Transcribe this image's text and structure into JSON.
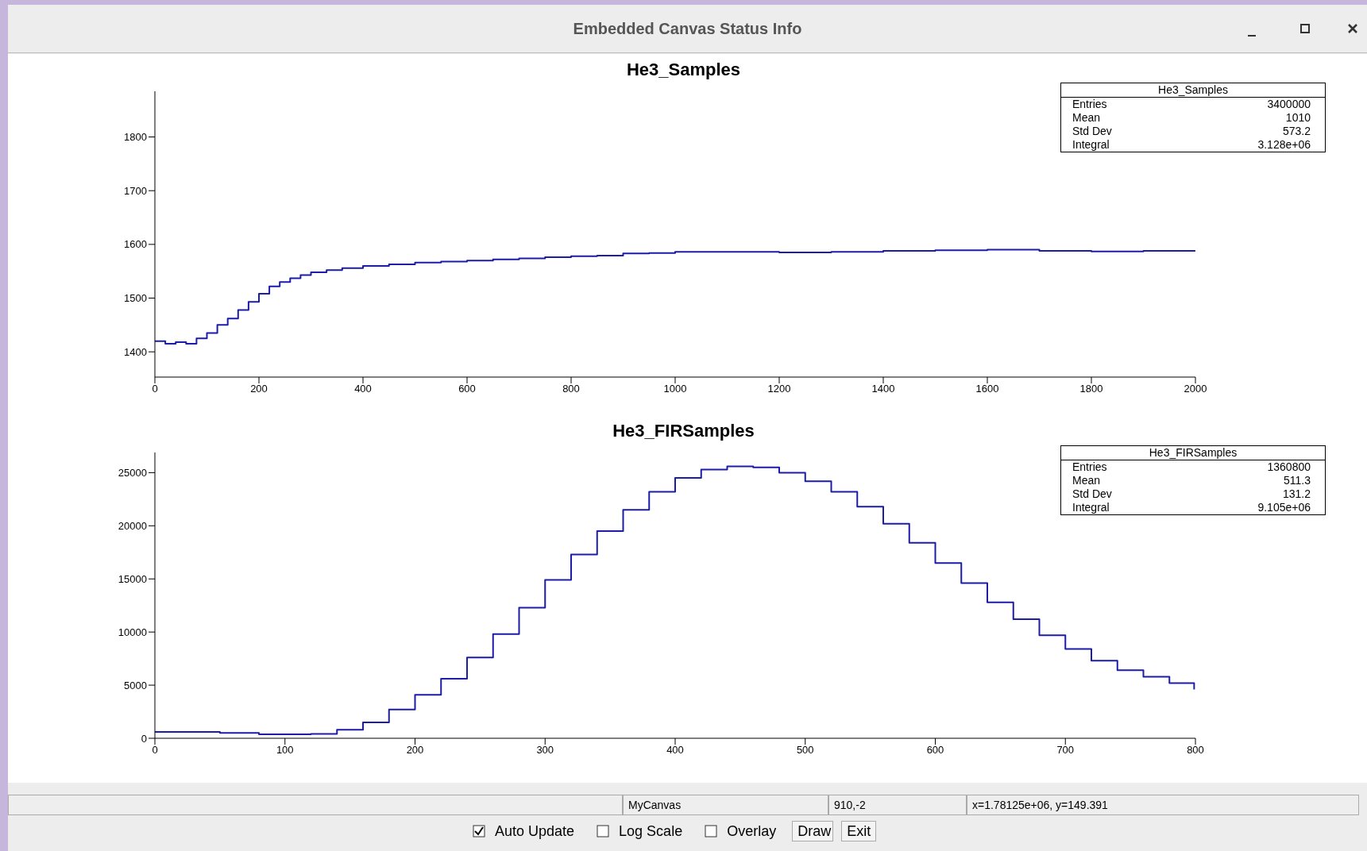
{
  "chart_data": [
    {
      "type": "step",
      "title": "He3_Samples",
      "x": [
        0,
        20,
        40,
        60,
        80,
        100,
        120,
        140,
        160,
        180,
        200,
        220,
        240,
        260,
        280,
        300,
        330,
        360,
        400,
        450,
        500,
        550,
        600,
        650,
        700,
        750,
        800,
        850,
        900,
        950,
        1000,
        1100,
        1200,
        1300,
        1400,
        1500,
        1600,
        1700,
        1800,
        1900,
        1999
      ],
      "series": [
        {
          "color": "#1c1ca8",
          "values": [
            1420,
            1415,
            1418,
            1415,
            1425,
            1435,
            1450,
            1462,
            1478,
            1493,
            1508,
            1522,
            1530,
            1537,
            1543,
            1548,
            1552,
            1556,
            1560,
            1563,
            1566,
            1568,
            1570,
            1572,
            1574,
            1576,
            1578,
            1579,
            1583,
            1584,
            1586,
            1586,
            1585,
            1586,
            1588,
            1589,
            1590,
            1588,
            1587,
            1588,
            1589
          ]
        }
      ],
      "xlim": [
        0,
        2000
      ],
      "xticks": [
        0,
        200,
        400,
        600,
        800,
        1000,
        1200,
        1400,
        1600,
        1800,
        2000
      ],
      "ylim": [
        1353,
        1885
      ],
      "yticks": [
        1400,
        1500,
        1600,
        1700,
        1800
      ],
      "annotations": [
        "Embedded Canvas Status Info",
        "He3_Samples",
        "Entries",
        "3400000",
        "Mean",
        "1010",
        "Std Dev",
        "573.2",
        "Integral",
        "3.128e+06"
      ]
    },
    {
      "type": "step",
      "title": "He3_FIRSamples",
      "x": [
        0,
        50,
        80,
        100,
        120,
        140,
        160,
        180,
        200,
        220,
        240,
        260,
        280,
        300,
        320,
        340,
        360,
        380,
        400,
        420,
        440,
        460,
        480,
        500,
        520,
        540,
        560,
        580,
        600,
        620,
        640,
        660,
        680,
        700,
        720,
        740,
        760,
        780,
        799
      ],
      "series": [
        {
          "color": "#1c1ca8",
          "values": [
            600,
            500,
            380,
            380,
            420,
            800,
            1500,
            2700,
            4100,
            5600,
            7600,
            9800,
            12300,
            14900,
            17300,
            19500,
            21500,
            23200,
            24500,
            25300,
            25600,
            25500,
            25000,
            24200,
            23200,
            21800,
            20200,
            18400,
            16500,
            14600,
            12800,
            11200,
            9700,
            8400,
            7300,
            6400,
            5800,
            5200,
            4600
          ]
        }
      ],
      "xlim": [
        0,
        800
      ],
      "xticks": [
        0,
        100,
        200,
        300,
        400,
        500,
        600,
        700,
        800
      ],
      "ylim": [
        0,
        26900
      ],
      "yticks": [
        0,
        5000,
        10000,
        15000,
        20000,
        25000
      ],
      "annotations": [
        "He3_FIRSamples",
        "Entries",
        "1360800",
        "Mean",
        "511.3",
        "Std Dev",
        "131.2",
        "Integral",
        "9.105e+06",
        "MyCanvas",
        "910,-2",
        "x=1.78125e+06, y=149.391",
        "Auto Update",
        "Log Scale",
        "Overlay",
        "Draw",
        "Exit"
      ]
    }
  ]
}
